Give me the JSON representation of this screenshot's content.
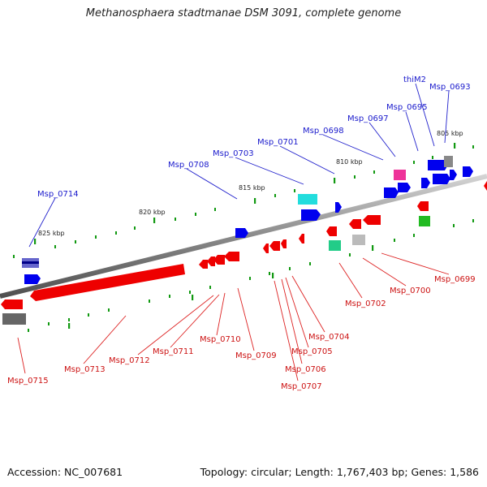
{
  "title": "Methanosphaera stadtmanae DSM 3091, complete genome",
  "footer": {
    "accession": "Accession: NC_007681",
    "stats": "Topology: circular; Length: 1,767,403 bp; Genes: 1,586"
  },
  "scale": [
    "825 kbp",
    "820 kbp",
    "815 kbp",
    "810 kbp",
    "805 kbp"
  ],
  "genes_top": [
    "Msp_0714",
    "Msp_0708",
    "Msp_0703",
    "Msp_0701",
    "Msp_0698",
    "Msp_0697",
    "Msp_0695",
    "thiM2",
    "Msp_0693"
  ],
  "genes_bottom": [
    "Msp_0715",
    "Msp_0713",
    "Msp_0712",
    "Msp_0711",
    "Msp_0710",
    "Msp_0709",
    "Msp_0707",
    "Msp_0706",
    "Msp_0705",
    "Msp_0704",
    "Msp_0702",
    "Msp_0700",
    "Msp_0699"
  ],
  "colors": {
    "forward": "#0000ee",
    "reverse": "#ee0000",
    "backbone": "#808080",
    "tick": "#119911"
  }
}
